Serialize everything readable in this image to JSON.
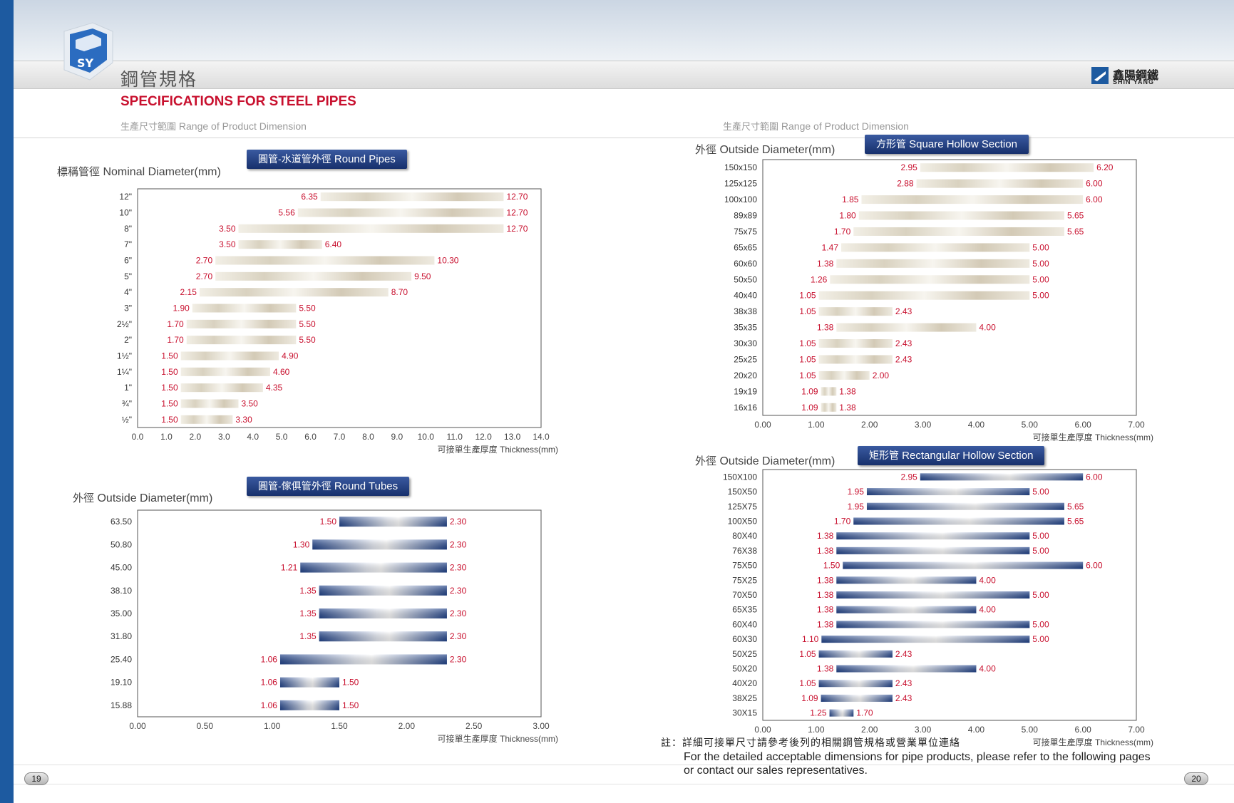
{
  "header": {
    "title_cn": "鋼管規格",
    "title_en": "SPECIFICATIONS FOR STEEL PIPES",
    "logo_text": "SY",
    "brand_cn": "鑫陽鋼鐵",
    "brand_en": "SHIN YANG"
  },
  "subheads": {
    "left_cn": "生產尺寸範圍",
    "left_en": "Range of Product Dimension",
    "right_cn": "生產尺寸範圍",
    "right_en": "Range of Product Dimension"
  },
  "charts": {
    "round_pipes": {
      "badge_cn": "圓管-水道管外徑",
      "badge_en": "Round Pipes",
      "ytitle_cn": "標稱管徑",
      "ytitle_en": "Nominal Diameter(mm)",
      "xtitle_cn": "可接單生產厚度",
      "xtitle_en": "Thickness(mm)"
    },
    "round_tubes": {
      "badge_cn": "圓管-傢俱管外徑",
      "badge_en": "Round Tubes",
      "ytitle_cn": "外徑",
      "ytitle_en": "Outside Diameter(mm)",
      "xtitle_cn": "可接單生產厚度",
      "xtitle_en": "Thickness(mm)"
    },
    "square": {
      "badge_cn": "方形管",
      "badge_en": "Square Hollow Section",
      "ytitle_cn": "外徑",
      "ytitle_en": "Outside Diameter(mm)",
      "xtitle_cn": "可接單生產厚度",
      "xtitle_en": "Thickness(mm)"
    },
    "rect": {
      "badge_cn": "矩形管",
      "badge_en": "Rectangular Hollow Section",
      "ytitle_cn": "外徑",
      "ytitle_en": "Outside Diameter(mm)",
      "xtitle_cn": "可接單生產厚度",
      "xtitle_en": "Thickness(mm)"
    }
  },
  "footnote": {
    "cn": "註：詳細可接單尺寸請參考後列的相關鋼管規格或營業單位連絡",
    "en_line1": "For the detailed acceptable dimensions for pipe products, please refer to the following pages",
    "en_line2": "or contact our sales representatives."
  },
  "page_numbers": {
    "left": "19",
    "right": "20"
  },
  "colors": {
    "accent_red": "#c8102e",
    "brand_blue": "#1d5aa0",
    "badge_blue": "#1f3a7a"
  },
  "chart_data": [
    {
      "type": "bar",
      "id": "round_pipes",
      "style": "floating-range",
      "title": "Round Pipes",
      "categories": [
        "12\"",
        "10\"",
        "8\"",
        "7\"",
        "6\"",
        "5\"",
        "4\"",
        "3\"",
        "2½\"",
        "2\"",
        "1½\"",
        "1¼\"",
        "1\"",
        "¾\"",
        "½\""
      ],
      "series": [
        {
          "name": "",
          "values": [
            6.35,
            5.56,
            3.5,
            3.5,
            2.7,
            2.7,
            2.15,
            1.9,
            1.7,
            1.7,
            1.5,
            1.5,
            1.5,
            1.5,
            1.5
          ]
        },
        {
          "name": "",
          "values": [
            12.7,
            12.7,
            12.7,
            6.4,
            10.3,
            9.5,
            8.7,
            5.5,
            5.5,
            5.5,
            4.9,
            4.6,
            4.35,
            3.5,
            3.3
          ]
        }
      ],
      "xticks": [
        "0.0",
        "1.0",
        "2.0",
        "3.0",
        "4.0",
        "5.0",
        "6.0",
        "7.0",
        "8.0",
        "9.0",
        "10.0",
        "11.0",
        "12.0",
        "13.0",
        "14.0"
      ],
      "xlim": [
        0,
        14
      ],
      "xlabel": "可接單生產厚度 Thickness(mm)",
      "ylabel": "標稱管徑 Nominal Diameter(mm)"
    },
    {
      "type": "bar",
      "id": "round_tubes",
      "style": "floating-range",
      "title": "Round Tubes",
      "categories": [
        "63.50",
        "50.80",
        "45.00",
        "38.10",
        "35.00",
        "31.80",
        "25.40",
        "19.10",
        "15.88"
      ],
      "series": [
        {
          "name": "",
          "values": [
            1.5,
            1.3,
            1.21,
            1.35,
            1.35,
            1.35,
            1.06,
            1.06,
            1.06
          ]
        },
        {
          "name": "",
          "values": [
            2.3,
            2.3,
            2.3,
            2.3,
            2.3,
            2.3,
            2.3,
            1.5,
            1.5
          ]
        }
      ],
      "xticks": [
        "0.00",
        "0.50",
        "1.00",
        "1.50",
        "2.00",
        "2.50",
        "3.00"
      ],
      "xlim": [
        0,
        3
      ],
      "xlabel": "可接單生產厚度 Thickness(mm)",
      "ylabel": "外徑 Outside Diameter(mm)"
    },
    {
      "type": "bar",
      "id": "square",
      "style": "floating-range",
      "title": "Square Hollow Section",
      "categories": [
        "150x150",
        "125x125",
        "100x100",
        "89x89",
        "75x75",
        "65x65",
        "60x60",
        "50x50",
        "40x40",
        "38x38",
        "35x35",
        "30x30",
        "25x25",
        "20x20",
        "19x19",
        "16x16"
      ],
      "series": [
        {
          "name": "",
          "values": [
            2.95,
            2.88,
            1.85,
            1.8,
            1.7,
            1.47,
            1.38,
            1.26,
            1.05,
            1.05,
            1.38,
            1.05,
            1.05,
            1.05,
            1.09,
            1.09
          ]
        },
        {
          "name": "",
          "values": [
            6.2,
            6.0,
            6.0,
            5.65,
            5.65,
            5.0,
            5.0,
            5.0,
            5.0,
            2.43,
            4.0,
            2.43,
            2.43,
            2.0,
            1.38,
            1.38
          ]
        }
      ],
      "xticks": [
        "0.00",
        "1.00",
        "2.00",
        "3.00",
        "4.00",
        "5.00",
        "6.00",
        "7.00"
      ],
      "xlim": [
        0,
        7
      ],
      "xlabel": "可接單生產厚度 Thickness(mm)",
      "ylabel": "外徑 Outside Diameter(mm)"
    },
    {
      "type": "bar",
      "id": "rect",
      "style": "floating-range",
      "title": "Rectangular Hollow Section",
      "categories": [
        "150X100",
        "150X50",
        "125X75",
        "100X50",
        "80X40",
        "76X38",
        "75X50",
        "75X25",
        "70X50",
        "65X35",
        "60X40",
        "60X30",
        "50X25",
        "50X20",
        "40X20",
        "38X25",
        "30X15"
      ],
      "series": [
        {
          "name": "",
          "values": [
            2.95,
            1.95,
            1.95,
            1.7,
            1.38,
            1.38,
            1.5,
            1.38,
            1.38,
            1.38,
            1.38,
            1.1,
            1.05,
            1.38,
            1.05,
            1.09,
            1.25
          ]
        },
        {
          "name": "",
          "values": [
            6.0,
            5.0,
            5.65,
            5.65,
            5.0,
            5.0,
            6.0,
            4.0,
            5.0,
            4.0,
            5.0,
            5.0,
            2.43,
            4.0,
            2.43,
            2.43,
            1.7
          ]
        }
      ],
      "xticks": [
        "0.00",
        "1.00",
        "2.00",
        "3.00",
        "4.00",
        "5.00",
        "6.00",
        "7.00"
      ],
      "xlim": [
        0,
        7
      ],
      "xlabel": "可接單生產厚度 Thickness(mm)",
      "ylabel": "外徑 Outside Diameter(mm)"
    }
  ]
}
